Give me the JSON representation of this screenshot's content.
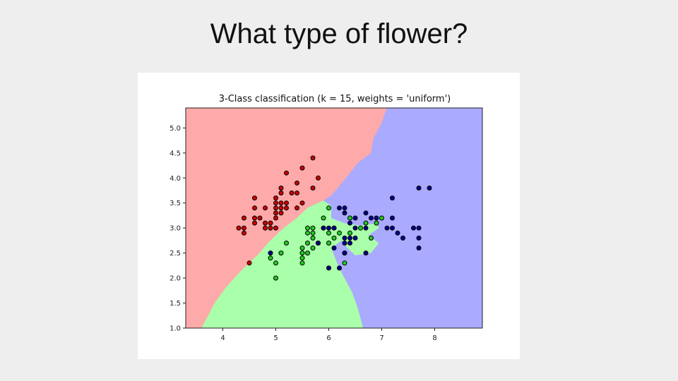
{
  "slide": {
    "title": "What type of flower?"
  },
  "chart_data": {
    "type": "scatter",
    "title": "3-Class classification (k = 15, weights = 'uniform')",
    "xlabel": "",
    "ylabel": "",
    "xlim": [
      3.3,
      8.9
    ],
    "ylim": [
      1.0,
      5.4
    ],
    "xticks": [
      4,
      5,
      6,
      7,
      8
    ],
    "yticks": [
      1.0,
      1.5,
      2.0,
      2.5,
      3.0,
      3.5,
      4.0,
      4.5,
      5.0
    ],
    "grid": false,
    "regions": [
      {
        "class": "red",
        "color": "#ffaaaa",
        "polygon": [
          [
            3.3,
            5.4
          ],
          [
            7.1,
            5.4
          ],
          [
            7.0,
            5.1
          ],
          [
            6.85,
            4.8
          ],
          [
            6.8,
            4.5
          ],
          [
            6.55,
            4.3
          ],
          [
            6.4,
            4.1
          ],
          [
            6.25,
            3.9
          ],
          [
            6.05,
            3.65
          ],
          [
            5.9,
            3.55
          ],
          [
            5.6,
            3.4
          ],
          [
            5.4,
            3.2
          ],
          [
            5.15,
            3.0
          ],
          [
            4.9,
            2.75
          ],
          [
            4.65,
            2.45
          ],
          [
            4.35,
            2.15
          ],
          [
            4.05,
            1.8
          ],
          [
            3.85,
            1.5
          ],
          [
            3.6,
            1.0
          ],
          [
            3.3,
            1.0
          ]
        ]
      },
      {
        "class": "green",
        "color": "#aaffaa",
        "polygon": [
          [
            3.6,
            1.0
          ],
          [
            3.85,
            1.5
          ],
          [
            4.05,
            1.8
          ],
          [
            4.35,
            2.15
          ],
          [
            4.65,
            2.45
          ],
          [
            4.9,
            2.75
          ],
          [
            5.15,
            3.0
          ],
          [
            5.4,
            3.2
          ],
          [
            5.6,
            3.4
          ],
          [
            5.9,
            3.55
          ],
          [
            6.05,
            3.45
          ],
          [
            6.05,
            3.2
          ],
          [
            6.3,
            3.1
          ],
          [
            6.6,
            3.05
          ],
          [
            6.9,
            3.1
          ],
          [
            6.95,
            3.0
          ],
          [
            6.75,
            2.85
          ],
          [
            6.95,
            2.7
          ],
          [
            6.8,
            2.5
          ],
          [
            6.5,
            2.45
          ],
          [
            6.35,
            2.6
          ],
          [
            6.25,
            2.75
          ],
          [
            6.05,
            2.6
          ],
          [
            6.2,
            2.2
          ],
          [
            6.3,
            2.0
          ],
          [
            6.45,
            1.7
          ],
          [
            6.55,
            1.4
          ],
          [
            6.65,
            1.0
          ]
        ]
      },
      {
        "class": "blue",
        "color": "#aaaaff",
        "polygon": [
          [
            7.1,
            5.4
          ],
          [
            8.9,
            5.4
          ],
          [
            8.9,
            1.0
          ],
          [
            6.65,
            1.0
          ],
          [
            6.55,
            1.4
          ],
          [
            6.45,
            1.7
          ],
          [
            6.3,
            2.0
          ],
          [
            6.2,
            2.2
          ],
          [
            6.05,
            2.6
          ],
          [
            6.25,
            2.75
          ],
          [
            6.35,
            2.6
          ],
          [
            6.5,
            2.45
          ],
          [
            6.8,
            2.5
          ],
          [
            6.95,
            2.7
          ],
          [
            6.75,
            2.85
          ],
          [
            6.95,
            3.0
          ],
          [
            6.9,
            3.1
          ],
          [
            6.6,
            3.05
          ],
          [
            6.3,
            3.1
          ],
          [
            6.05,
            3.2
          ],
          [
            6.05,
            3.45
          ],
          [
            5.9,
            3.55
          ],
          [
            6.05,
            3.65
          ],
          [
            6.25,
            3.9
          ],
          [
            6.4,
            4.1
          ],
          [
            6.55,
            4.3
          ],
          [
            6.8,
            4.5
          ],
          [
            6.85,
            4.8
          ],
          [
            7.0,
            5.1
          ]
        ]
      }
    ],
    "series": [
      {
        "class": "red",
        "color": "#cc0000",
        "points": [
          [
            4.3,
            3.0
          ],
          [
            4.4,
            2.9
          ],
          [
            4.4,
            3.0
          ],
          [
            4.4,
            3.2
          ],
          [
            4.5,
            2.3
          ],
          [
            4.6,
            3.1
          ],
          [
            4.6,
            3.2
          ],
          [
            4.6,
            3.4
          ],
          [
            4.6,
            3.6
          ],
          [
            4.7,
            3.2
          ],
          [
            4.8,
            3.0
          ],
          [
            4.8,
            3.1
          ],
          [
            4.8,
            3.4
          ],
          [
            4.9,
            3.0
          ],
          [
            4.9,
            3.1
          ],
          [
            5.0,
            3.0
          ],
          [
            5.0,
            3.2
          ],
          [
            5.0,
            3.3
          ],
          [
            5.0,
            3.4
          ],
          [
            5.0,
            3.5
          ],
          [
            5.0,
            3.6
          ],
          [
            5.1,
            3.3
          ],
          [
            5.1,
            3.4
          ],
          [
            5.1,
            3.5
          ],
          [
            5.1,
            3.7
          ],
          [
            5.1,
            3.8
          ],
          [
            5.2,
            3.4
          ],
          [
            5.2,
            3.5
          ],
          [
            5.2,
            4.1
          ],
          [
            5.3,
            3.7
          ],
          [
            5.4,
            3.4
          ],
          [
            5.4,
            3.7
          ],
          [
            5.4,
            3.9
          ],
          [
            5.5,
            3.5
          ],
          [
            5.5,
            4.2
          ],
          [
            5.7,
            3.8
          ],
          [
            5.7,
            4.4
          ],
          [
            5.8,
            4.0
          ]
        ]
      },
      {
        "class": "green",
        "color": "#22cc22",
        "points": [
          [
            4.9,
            2.4
          ],
          [
            5.0,
            2.0
          ],
          [
            5.0,
            2.3
          ],
          [
            5.1,
            2.5
          ],
          [
            5.2,
            2.7
          ],
          [
            5.5,
            2.3
          ],
          [
            5.5,
            2.4
          ],
          [
            5.5,
            2.5
          ],
          [
            5.5,
            2.6
          ],
          [
            5.6,
            2.5
          ],
          [
            5.6,
            2.7
          ],
          [
            5.6,
            2.9
          ],
          [
            5.6,
            3.0
          ],
          [
            5.7,
            2.6
          ],
          [
            5.7,
            2.8
          ],
          [
            5.7,
            2.9
          ],
          [
            5.7,
            3.0
          ],
          [
            5.8,
            2.7
          ],
          [
            5.9,
            3.0
          ],
          [
            5.9,
            3.2
          ],
          [
            6.0,
            2.7
          ],
          [
            6.0,
            2.9
          ],
          [
            6.0,
            3.4
          ],
          [
            6.1,
            2.8
          ],
          [
            6.1,
            3.0
          ],
          [
            6.2,
            2.9
          ],
          [
            6.3,
            2.3
          ],
          [
            6.3,
            2.5
          ],
          [
            6.4,
            2.9
          ],
          [
            6.4,
            3.2
          ],
          [
            6.6,
            3.0
          ],
          [
            6.7,
            3.1
          ],
          [
            6.8,
            2.8
          ],
          [
            6.9,
            3.1
          ],
          [
            7.0,
            3.2
          ]
        ]
      },
      {
        "class": "blue",
        "color": "#00008b",
        "points": [
          [
            4.9,
            2.5
          ],
          [
            5.8,
            2.7
          ],
          [
            5.9,
            3.0
          ],
          [
            6.0,
            2.2
          ],
          [
            6.0,
            3.0
          ],
          [
            6.1,
            2.6
          ],
          [
            6.1,
            3.0
          ],
          [
            6.2,
            2.2
          ],
          [
            6.2,
            3.4
          ],
          [
            6.3,
            2.5
          ],
          [
            6.3,
            2.7
          ],
          [
            6.3,
            2.8
          ],
          [
            6.3,
            3.3
          ],
          [
            6.3,
            3.4
          ],
          [
            6.4,
            2.7
          ],
          [
            6.4,
            2.8
          ],
          [
            6.4,
            3.1
          ],
          [
            6.5,
            2.8
          ],
          [
            6.5,
            3.0
          ],
          [
            6.5,
            3.2
          ],
          [
            6.7,
            2.5
          ],
          [
            6.7,
            3.0
          ],
          [
            6.7,
            3.3
          ],
          [
            6.8,
            3.2
          ],
          [
            6.9,
            3.2
          ],
          [
            7.1,
            3.0
          ],
          [
            7.2,
            3.0
          ],
          [
            7.2,
            3.2
          ],
          [
            7.2,
            3.6
          ],
          [
            7.3,
            2.9
          ],
          [
            7.4,
            2.8
          ],
          [
            7.6,
            3.0
          ],
          [
            7.7,
            2.6
          ],
          [
            7.7,
            2.8
          ],
          [
            7.7,
            3.0
          ],
          [
            7.7,
            3.8
          ],
          [
            7.9,
            3.8
          ]
        ]
      }
    ]
  }
}
